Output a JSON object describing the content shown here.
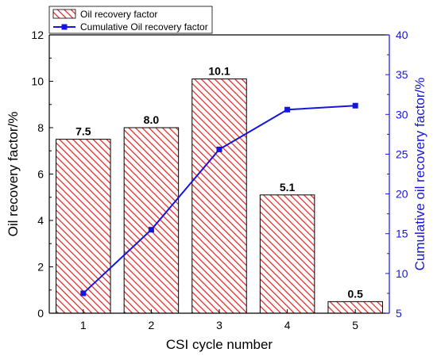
{
  "chart_data": {
    "type": "bar+line",
    "categories": [
      "1",
      "2",
      "3",
      "4",
      "5"
    ],
    "xlabel": "CSI cycle number",
    "ylabel": "Oil recovery factor/%",
    "y2label": "Cumulative oil recovery factor/%",
    "ylim": [
      0,
      12
    ],
    "y2lim": [
      5,
      40
    ],
    "yticks": [
      "0",
      "2",
      "4",
      "6",
      "8",
      "10",
      "12"
    ],
    "y2ticks": [
      "5",
      "10",
      "15",
      "20",
      "25",
      "30",
      "35",
      "40"
    ],
    "series": [
      {
        "name": "Oil recovery factor",
        "type": "bar",
        "axis": "left",
        "values": [
          7.5,
          8.0,
          10.1,
          5.1,
          0.5
        ],
        "labels": [
          "7.5",
          "8.0",
          "10.1",
          "5.1",
          "0.5"
        ],
        "color": "#e02020",
        "pattern": "diagonal-hatch"
      },
      {
        "name": "Cumulative Oil recovery factor",
        "type": "line",
        "axis": "right",
        "values": [
          7.5,
          15.5,
          25.6,
          30.6,
          31.1
        ],
        "color": "#1515e0",
        "marker": "square"
      }
    ],
    "legend_position": "top-left",
    "grid": false
  }
}
